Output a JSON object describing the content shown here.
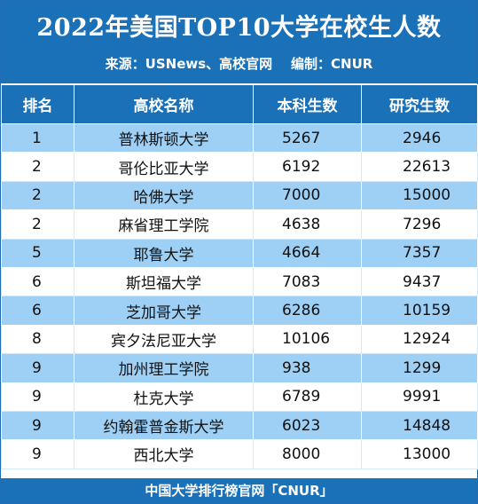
{
  "title": "2022年美国TOP10大学在校生人数",
  "subtitle": "来源：USNews、高校官网    编制：CNUR",
  "headers": [
    "排名",
    "高校名称",
    "本科生数",
    "研究生数"
  ],
  "rows": [
    {
      "rank": "1",
      "name": "普林斯顿大学",
      "undergrad": "5267",
      "grad": "2946"
    },
    {
      "rank": "2",
      "name": "哥伦比亚大学",
      "undergrad": "6192",
      "grad": "22613"
    },
    {
      "rank": "2",
      "name": "哈佛大学",
      "undergrad": "7000",
      "grad": "15000"
    },
    {
      "rank": "2",
      "name": "麻省理工学院",
      "undergrad": "4638",
      "grad": "7296"
    },
    {
      "rank": "5",
      "name": "耶鲁大学",
      "undergrad": "4664",
      "grad": "7357"
    },
    {
      "rank": "6",
      "name": "斯坦福大学",
      "undergrad": "7083",
      "grad": "9437"
    },
    {
      "rank": "6",
      "name": "芝加哥大学",
      "undergrad": "6286",
      "grad": "10159"
    },
    {
      "rank": "8",
      "name": "宾夕法尼亚大学",
      "undergrad": "10106",
      "grad": "12924"
    },
    {
      "rank": "9",
      "name": "加州理工学院",
      "undergrad": "938",
      "grad": "1299"
    },
    {
      "rank": "9",
      "name": "杜克大学",
      "undergrad": "6789",
      "grad": "9991"
    },
    {
      "rank": "9",
      "name": "约翰霍普金斯大学",
      "undergrad": "6023",
      "grad": "14848"
    },
    {
      "rank": "9",
      "name": "西北大学",
      "undergrad": "8000",
      "grad": "13000"
    }
  ],
  "footer": "中国大学排行榜官网「CNUR」",
  "colors": {
    "header_blue": "#1b71b8",
    "row_highlight": "#9ed0f5",
    "text": "#111111"
  }
}
